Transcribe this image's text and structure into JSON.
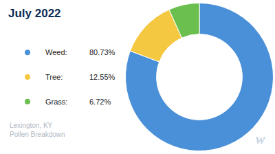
{
  "chart_data": {
    "type": "donut",
    "title": "July 2022",
    "subtitle": "Lexington, KY\nPollen Breakdown",
    "categories": [
      "Weed:",
      "Tree:",
      "Grass:"
    ],
    "values": [
      80.73,
      12.55,
      6.72
    ],
    "value_labels": [
      "80.73%",
      "12.55%",
      "6.72%"
    ],
    "colors": [
      "#4A90D9",
      "#F5C842",
      "#6BBF4E"
    ],
    "annotations": [
      "w"
    ]
  }
}
